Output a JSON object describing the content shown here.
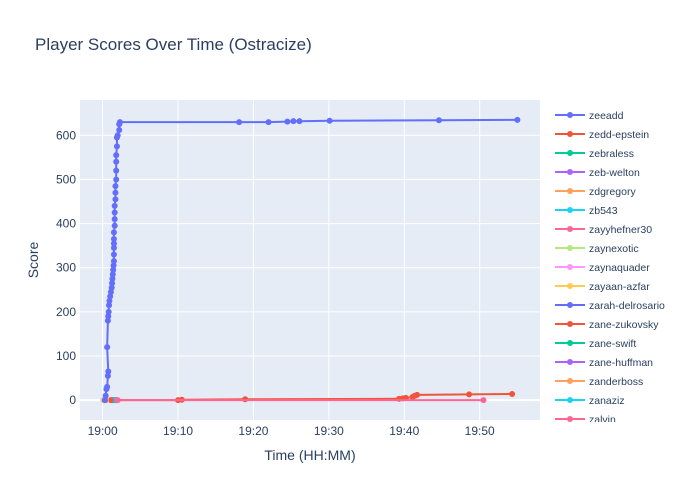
{
  "chart_data": {
    "type": "line",
    "title": "Player Scores Over Time (Ostracize)",
    "xlabel": "Time (HH:MM)",
    "ylabel": "Score",
    "x_axis_minutes_range": [
      -3,
      58
    ],
    "ylim": [
      -45,
      680
    ],
    "x_ticks": [
      {
        "minute": 0,
        "label": "19:00"
      },
      {
        "minute": 10,
        "label": "19:10"
      },
      {
        "minute": 20,
        "label": "19:20"
      },
      {
        "minute": 30,
        "label": "19:30"
      },
      {
        "minute": 40,
        "label": "19:40"
      },
      {
        "minute": 50,
        "label": "19:50"
      }
    ],
    "y_ticks": [
      0,
      100,
      200,
      300,
      400,
      500,
      600
    ],
    "grid": true,
    "legend_position": "right",
    "series": [
      {
        "name": "zeeadd",
        "color": "#636efa",
        "points": [
          [
            0.3,
            0
          ],
          [
            0.4,
            10
          ],
          [
            0.5,
            25
          ],
          [
            0.6,
            30
          ],
          [
            0.7,
            55
          ],
          [
            0.75,
            65
          ],
          [
            0.6,
            120
          ],
          [
            0.7,
            180
          ],
          [
            0.75,
            190
          ],
          [
            0.8,
            200
          ],
          [
            0.85,
            215
          ],
          [
            0.9,
            225
          ],
          [
            1.0,
            235
          ],
          [
            1.1,
            245
          ],
          [
            1.2,
            255
          ],
          [
            1.25,
            265
          ],
          [
            1.3,
            275
          ],
          [
            1.35,
            285
          ],
          [
            1.4,
            295
          ],
          [
            1.45,
            305
          ],
          [
            1.5,
            315
          ],
          [
            1.5,
            330
          ],
          [
            1.5,
            345
          ],
          [
            1.5,
            355
          ],
          [
            1.5,
            365
          ],
          [
            1.5,
            380
          ],
          [
            1.6,
            395
          ],
          [
            1.6,
            410
          ],
          [
            1.6,
            425
          ],
          [
            1.6,
            440
          ],
          [
            1.7,
            455
          ],
          [
            1.7,
            470
          ],
          [
            1.7,
            485
          ],
          [
            1.8,
            500
          ],
          [
            1.8,
            520
          ],
          [
            1.8,
            540
          ],
          [
            1.8,
            555
          ],
          [
            1.9,
            575
          ],
          [
            1.9,
            595
          ],
          [
            2.0,
            600
          ],
          [
            2.2,
            612
          ],
          [
            2.2,
            625
          ],
          [
            2.3,
            630
          ],
          [
            18.1,
            630
          ],
          [
            22.0,
            630
          ],
          [
            24.5,
            631
          ],
          [
            25.3,
            632
          ],
          [
            26.1,
            632
          ],
          [
            30.1,
            633
          ],
          [
            44.6,
            634
          ],
          [
            55.0,
            635
          ]
        ]
      },
      {
        "name": "zedd-epstein",
        "color": "#ef553b",
        "points": [
          [
            1.2,
            0
          ],
          [
            10.0,
            0
          ],
          [
            10.5,
            1
          ],
          [
            18.9,
            2
          ],
          [
            39.3,
            3
          ],
          [
            39.8,
            4
          ],
          [
            40.2,
            5
          ],
          [
            41.1,
            7
          ],
          [
            41.4,
            10
          ],
          [
            41.7,
            12
          ],
          [
            48.6,
            13
          ],
          [
            54.3,
            14
          ]
        ]
      },
      {
        "name": "zebraless",
        "color": "#00cc96",
        "points": [
          [
            1.3,
            0
          ],
          [
            1.6,
            0
          ]
        ]
      },
      {
        "name": "zeb-welton",
        "color": "#ab63fa",
        "points": [
          [
            1.4,
            0
          ]
        ]
      },
      {
        "name": "zdgregory",
        "color": "#ffa15a",
        "points": [
          [
            0.1,
            0
          ]
        ]
      },
      {
        "name": "zb543",
        "color": "#19d3f3",
        "points": [
          [
            1.5,
            0
          ]
        ]
      },
      {
        "name": "zayyhefner30",
        "color": "#ff6692",
        "points": [
          [
            1.6,
            0
          ],
          [
            50.5,
            0
          ]
        ]
      },
      {
        "name": "zaynexotic",
        "color": "#b6e880",
        "points": [
          [
            0.2,
            0
          ]
        ]
      },
      {
        "name": "zaynaquader",
        "color": "#ff97ff",
        "points": [
          [
            0.25,
            0
          ]
        ]
      },
      {
        "name": "zayaan-azfar",
        "color": "#fecb52",
        "points": [
          [
            0.15,
            0
          ]
        ]
      },
      {
        "name": "zarah-delrosario",
        "color": "#636efa",
        "points": [
          [
            0.35,
            0
          ]
        ]
      },
      {
        "name": "zane-zukovsky",
        "color": "#ef553b",
        "points": [
          [
            1.1,
            0
          ]
        ]
      },
      {
        "name": "zane-swift",
        "color": "#00cc96",
        "points": [
          [
            1.7,
            0
          ]
        ]
      },
      {
        "name": "zane-huffman",
        "color": "#ab63fa",
        "points": [
          [
            1.8,
            0
          ]
        ]
      },
      {
        "name": "zanderboss",
        "color": "#ffa15a",
        "points": [
          [
            0.45,
            0
          ]
        ]
      },
      {
        "name": "zanaziz",
        "color": "#19d3f3",
        "points": [
          [
            1.9,
            0
          ]
        ]
      },
      {
        "name": "zalvin",
        "color": "#ff6692",
        "points": [
          [
            2.0,
            0
          ]
        ]
      }
    ]
  }
}
